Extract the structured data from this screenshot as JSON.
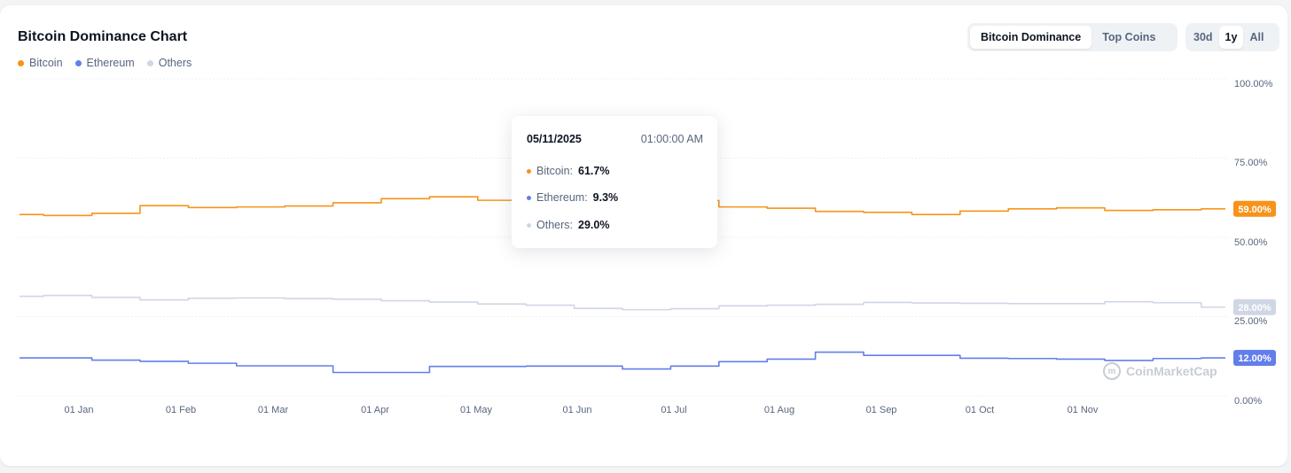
{
  "header": {
    "title": "Bitcoin Dominance Chart"
  },
  "legend": [
    {
      "label": "Bitcoin",
      "color": "#f7931a"
    },
    {
      "label": "Ethereum",
      "color": "#627eea"
    },
    {
      "label": "Others",
      "color": "#cfd6e4"
    }
  ],
  "toggles": {
    "type": {
      "options": [
        "Bitcoin Dominance",
        "Top Coins"
      ],
      "selected": "Bitcoin Dominance"
    },
    "range": {
      "options": [
        "30d",
        "1y",
        "All"
      ],
      "selected": "1y"
    }
  },
  "tooltip": {
    "date": "05/11/2025",
    "time": "01:00:00 AM",
    "rows": [
      {
        "label": "Bitcoin:",
        "value": "61.7%"
      },
      {
        "label": "Ethereum:",
        "value": "9.3%"
      },
      {
        "label": "Others:",
        "value": "29.0%"
      }
    ]
  },
  "watermark": "CoinMarketCap",
  "chart_data": {
    "type": "line",
    "y_ticks": [
      "100.00%",
      "75.00%",
      "50.00%",
      "25.00%",
      "0.00%"
    ],
    "y_tick_values": [
      100,
      75,
      50,
      25,
      0
    ],
    "ylim": [
      0,
      100
    ],
    "x_ticks": [
      "01 Jan",
      "01 Feb",
      "01 Mar",
      "01 Apr",
      "01 May",
      "01 Jun",
      "01 Jul",
      "01 Aug",
      "01 Sep",
      "01 Oct",
      "01 Nov"
    ],
    "grid": true,
    "x": [
      "Dec 18",
      "Jan 1",
      "Jan 15",
      "Feb 1",
      "Feb 15",
      "Mar 1",
      "Mar 15",
      "Apr 1",
      "Apr 15",
      "May 1",
      "May 11",
      "May 15",
      "Jun 1",
      "Jun 15",
      "Jul 1",
      "Jul 15",
      "Aug 1",
      "Aug 15",
      "Sep 1",
      "Sep 15",
      "Oct 1",
      "Oct 15",
      "Nov 1",
      "Nov 15",
      "Dec 1",
      "Dec 10"
    ],
    "series": [
      {
        "name": "Bitcoin",
        "color": "#f7931a",
        "values": [
          57.2,
          56.9,
          57.6,
          60.0,
          59.4,
          59.6,
          59.9,
          60.9,
          62.2,
          62.8,
          61.7,
          61.4,
          62.3,
          61.8,
          61.6,
          59.6,
          59.2,
          58.2,
          57.9,
          57.2,
          58.3,
          59.0,
          59.3,
          58.5,
          58.7,
          59.0
        ],
        "end_label": "59.00%"
      },
      {
        "name": "Others",
        "color": "#cfd6e4",
        "values": [
          31.4,
          31.7,
          31.1,
          30.3,
          30.8,
          30.9,
          30.7,
          30.5,
          30.0,
          29.6,
          29.0,
          28.6,
          27.6,
          27.2,
          27.5,
          28.4,
          28.6,
          28.9,
          29.5,
          29.3,
          29.2,
          29.1,
          29.1,
          29.7,
          29.4,
          28.0
        ],
        "end_label": "28.00%"
      },
      {
        "name": "Ethereum",
        "color": "#627eea",
        "values": [
          12.0,
          12.0,
          11.3,
          10.9,
          10.3,
          9.5,
          9.5,
          7.4,
          7.4,
          9.3,
          9.3,
          9.4,
          9.4,
          8.5,
          9.4,
          10.8,
          11.6,
          13.8,
          12.8,
          12.8,
          11.9,
          11.8,
          11.6,
          11.2,
          11.8,
          12.0
        ],
        "end_label": "12.00%"
      }
    ]
  }
}
